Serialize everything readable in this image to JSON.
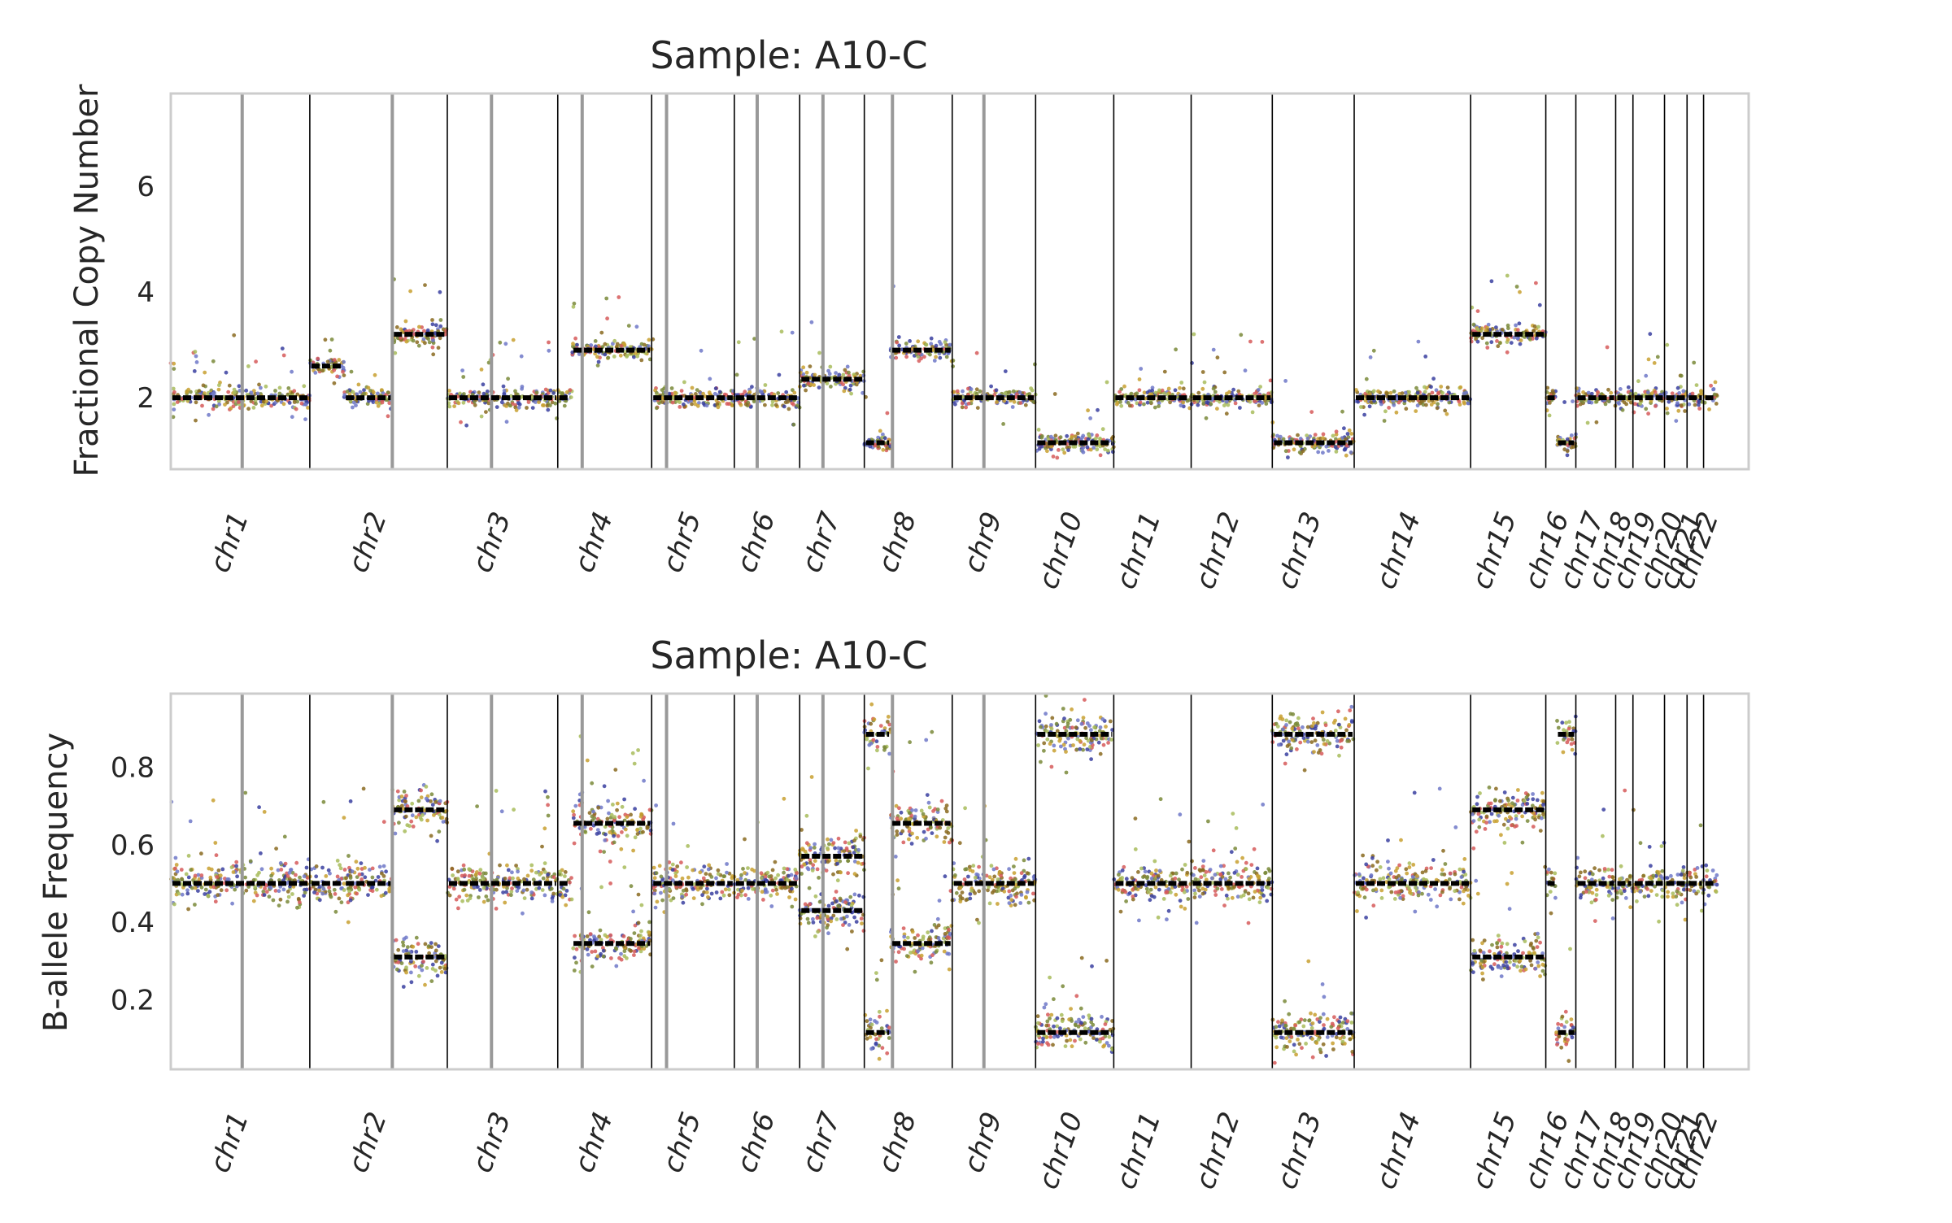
{
  "chart_data": [
    {
      "type": "scatter",
      "title": "Sample: A10-C",
      "xlabel": "",
      "ylabel": "Fractional Copy Number",
      "ylim": [
        0.65,
        7.75
      ],
      "yticks": [
        2,
        4,
        6
      ],
      "grid": false,
      "legend": "none",
      "x_categories": [
        "chr1",
        "chr2",
        "chr3",
        "chr4",
        "chr5",
        "chr6",
        "chr7",
        "chr8",
        "chr9",
        "chr10",
        "chr11",
        "chr12",
        "chr13",
        "chr14",
        "chr15",
        "chr16",
        "chr17",
        "chr18",
        "chr19",
        "chr20",
        "chr21",
        "chr22"
      ],
      "centromeres": [
        1.0,
        0.6,
        0.4,
        0.26,
        0.18,
        0.35,
        0.36,
        0.32,
        0.38
      ],
      "segments": [
        {
          "chrom": "chr1",
          "start": 0.0,
          "end": 1.0,
          "value": 2.0
        },
        {
          "chrom": "chr2",
          "start": 0.0,
          "end": 0.25,
          "value": 2.6
        },
        {
          "chrom": "chr2",
          "start": 0.25,
          "end": 0.6,
          "value": 2.0
        },
        {
          "chrom": "chr2",
          "start": 0.6,
          "end": 1.0,
          "value": 3.2
        },
        {
          "chrom": "chr3",
          "start": 0.0,
          "end": 1.0,
          "value": 2.0
        },
        {
          "chrom": "chr4",
          "start": 0.0,
          "end": 0.15,
          "value": 2.0
        },
        {
          "chrom": "chr4",
          "start": 0.15,
          "end": 1.0,
          "value": 2.9
        },
        {
          "chrom": "chr5",
          "start": 0.0,
          "end": 1.0,
          "value": 2.0
        },
        {
          "chrom": "chr6",
          "start": 0.0,
          "end": 1.0,
          "value": 2.0
        },
        {
          "chrom": "chr7",
          "start": 0.0,
          "end": 1.0,
          "value": 2.35
        },
        {
          "chrom": "chr8",
          "start": 0.0,
          "end": 0.3,
          "value": 1.15
        },
        {
          "chrom": "chr8",
          "start": 0.3,
          "end": 1.0,
          "value": 2.9
        },
        {
          "chrom": "chr9",
          "start": 0.0,
          "end": 1.0,
          "value": 2.0
        },
        {
          "chrom": "chr10",
          "start": 0.0,
          "end": 1.0,
          "value": 1.15
        },
        {
          "chrom": "chr11",
          "start": 0.0,
          "end": 1.0,
          "value": 2.0
        },
        {
          "chrom": "chr12",
          "start": 0.0,
          "end": 1.0,
          "value": 2.0
        },
        {
          "chrom": "chr13",
          "start": 0.0,
          "end": 1.0,
          "value": 1.15
        },
        {
          "chrom": "chr14",
          "start": 0.0,
          "end": 1.0,
          "value": 2.0
        },
        {
          "chrom": "chr15",
          "start": 0.0,
          "end": 1.0,
          "value": 3.2
        },
        {
          "chrom": "chr16",
          "start": 0.0,
          "end": 0.35,
          "value": 2.0
        },
        {
          "chrom": "chr16",
          "start": 0.35,
          "end": 1.0,
          "value": 1.15
        },
        {
          "chrom": "chr17",
          "start": 0.0,
          "end": 1.0,
          "value": 2.0
        },
        {
          "chrom": "chr18",
          "start": 0.0,
          "end": 1.0,
          "value": 2.0
        },
        {
          "chrom": "chr19",
          "start": 0.0,
          "end": 1.0,
          "value": 2.0
        },
        {
          "chrom": "chr20",
          "start": 0.0,
          "end": 1.0,
          "value": 2.0
        },
        {
          "chrom": "chr21",
          "start": 0.0,
          "end": 1.0,
          "value": 2.0
        },
        {
          "chrom": "chr22",
          "start": 0.0,
          "end": 1.0,
          "value": 2.0
        }
      ]
    },
    {
      "type": "scatter",
      "title": "Sample: A10-C",
      "xlabel": "",
      "ylabel": "B-allele Frequency",
      "ylim": [
        0.02,
        0.99
      ],
      "yticks": [
        0.2,
        0.4,
        0.6,
        0.8
      ],
      "grid": false,
      "legend": "none",
      "x_categories": [
        "chr1",
        "chr2",
        "chr3",
        "chr4",
        "chr5",
        "chr6",
        "chr7",
        "chr8",
        "chr9",
        "chr10",
        "chr11",
        "chr12",
        "chr13",
        "chr14",
        "chr15",
        "chr16",
        "chr17",
        "chr18",
        "chr19",
        "chr20",
        "chr21",
        "chr22"
      ],
      "centromeres": [
        1.0,
        0.6,
        0.4,
        0.26,
        0.18,
        0.35,
        0.36,
        0.32,
        0.38
      ],
      "segments": [
        {
          "chrom": "chr1",
          "start": 0.0,
          "end": 1.0,
          "value": 0.5
        },
        {
          "chrom": "chr2",
          "start": 0.0,
          "end": 0.25,
          "value": 0.5
        },
        {
          "chrom": "chr2",
          "start": 0.25,
          "end": 0.6,
          "value": 0.5
        },
        {
          "chrom": "chr2",
          "start": 0.6,
          "end": 1.0,
          "value": 0.69
        },
        {
          "chrom": "chr2",
          "start": 0.6,
          "end": 1.0,
          "value": 0.31
        },
        {
          "chrom": "chr3",
          "start": 0.0,
          "end": 1.0,
          "value": 0.5
        },
        {
          "chrom": "chr4",
          "start": 0.0,
          "end": 0.15,
          "value": 0.5
        },
        {
          "chrom": "chr4",
          "start": 0.15,
          "end": 1.0,
          "value": 0.655
        },
        {
          "chrom": "chr4",
          "start": 0.15,
          "end": 1.0,
          "value": 0.345
        },
        {
          "chrom": "chr5",
          "start": 0.0,
          "end": 1.0,
          "value": 0.5
        },
        {
          "chrom": "chr6",
          "start": 0.0,
          "end": 1.0,
          "value": 0.5
        },
        {
          "chrom": "chr7",
          "start": 0.0,
          "end": 1.0,
          "value": 0.57
        },
        {
          "chrom": "chr7",
          "start": 0.0,
          "end": 1.0,
          "value": 0.43
        },
        {
          "chrom": "chr8",
          "start": 0.0,
          "end": 0.3,
          "value": 0.885
        },
        {
          "chrom": "chr8",
          "start": 0.0,
          "end": 0.3,
          "value": 0.115
        },
        {
          "chrom": "chr8",
          "start": 0.3,
          "end": 1.0,
          "value": 0.655
        },
        {
          "chrom": "chr8",
          "start": 0.3,
          "end": 1.0,
          "value": 0.345
        },
        {
          "chrom": "chr9",
          "start": 0.0,
          "end": 1.0,
          "value": 0.5
        },
        {
          "chrom": "chr10",
          "start": 0.0,
          "end": 1.0,
          "value": 0.885
        },
        {
          "chrom": "chr10",
          "start": 0.0,
          "end": 1.0,
          "value": 0.115
        },
        {
          "chrom": "chr11",
          "start": 0.0,
          "end": 1.0,
          "value": 0.5
        },
        {
          "chrom": "chr12",
          "start": 0.0,
          "end": 1.0,
          "value": 0.5
        },
        {
          "chrom": "chr13",
          "start": 0.0,
          "end": 1.0,
          "value": 0.885
        },
        {
          "chrom": "chr13",
          "start": 0.0,
          "end": 1.0,
          "value": 0.115
        },
        {
          "chrom": "chr14",
          "start": 0.0,
          "end": 1.0,
          "value": 0.5
        },
        {
          "chrom": "chr15",
          "start": 0.0,
          "end": 1.0,
          "value": 0.69
        },
        {
          "chrom": "chr15",
          "start": 0.0,
          "end": 1.0,
          "value": 0.31
        },
        {
          "chrom": "chr16",
          "start": 0.0,
          "end": 0.35,
          "value": 0.5
        },
        {
          "chrom": "chr16",
          "start": 0.35,
          "end": 1.0,
          "value": 0.885
        },
        {
          "chrom": "chr16",
          "start": 0.35,
          "end": 1.0,
          "value": 0.115
        },
        {
          "chrom": "chr17",
          "start": 0.0,
          "end": 1.0,
          "value": 0.5
        },
        {
          "chrom": "chr18",
          "start": 0.0,
          "end": 1.0,
          "value": 0.5
        },
        {
          "chrom": "chr19",
          "start": 0.0,
          "end": 1.0,
          "value": 0.5
        },
        {
          "chrom": "chr20",
          "start": 0.0,
          "end": 1.0,
          "value": 0.5
        },
        {
          "chrom": "chr21",
          "start": 0.0,
          "end": 1.0,
          "value": 0.5
        },
        {
          "chrom": "chr22",
          "start": 0.0,
          "end": 1.0,
          "value": 0.5
        }
      ]
    }
  ],
  "colors": {
    "sample_points": [
      "#3a3fa0",
      "#6f78c8",
      "#c8a030",
      "#d65a5a",
      "#7a8a3a",
      "#a8bc5c",
      "#8a6a20"
    ],
    "segment": "#000000",
    "chrom_boundary": "#000000",
    "centromere": "#999999",
    "axes_frame": "#cccccc",
    "text": "#262626"
  }
}
